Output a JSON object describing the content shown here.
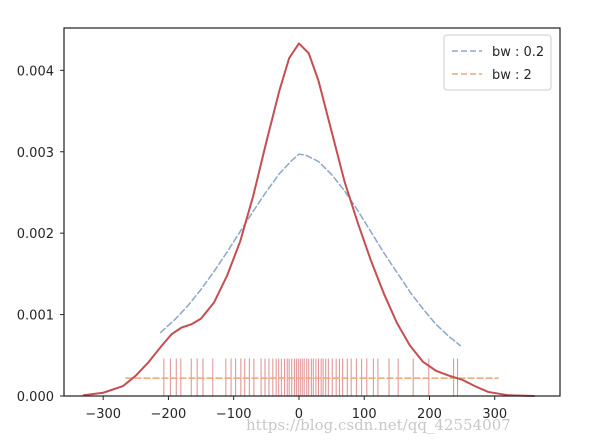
{
  "chart_data": {
    "type": "line",
    "title": "",
    "xlabel": "",
    "ylabel": "",
    "xlim": [
      -360,
      400
    ],
    "ylim": [
      0,
      0.00452
    ],
    "x_ticks": [
      -300,
      -200,
      -100,
      0,
      100,
      200,
      300
    ],
    "x_tick_labels": [
      "−300",
      "−200",
      "−100",
      "0",
      "100",
      "200",
      "300"
    ],
    "y_ticks": [
      0,
      0.001,
      0.002,
      0.003,
      0.004
    ],
    "y_tick_labels": [
      "0.000",
      "0.001",
      "0.002",
      "0.003",
      "0.004"
    ],
    "grid": false,
    "legend": {
      "placement": "top-right"
    },
    "series": [
      {
        "name": "",
        "style": "solid",
        "color": "#c44e52",
        "x": [
          -330,
          -300,
          -270,
          -250,
          -230,
          -210,
          -195,
          -180,
          -165,
          -150,
          -130,
          -110,
          -90,
          -70,
          -50,
          -30,
          -15,
          0,
          15,
          30,
          50,
          70,
          90,
          110,
          130,
          150,
          170,
          190,
          210,
          230,
          250,
          270,
          290,
          320,
          360
        ],
        "y": [
          1e-05,
          4e-05,
          0.00012,
          0.00025,
          0.00042,
          0.00062,
          0.00076,
          0.00084,
          0.00088,
          0.00095,
          0.00115,
          0.00148,
          0.0019,
          0.00246,
          0.00312,
          0.00375,
          0.00415,
          0.00433,
          0.00421,
          0.00387,
          0.00325,
          0.00263,
          0.00213,
          0.00167,
          0.00126,
          0.0009,
          0.00062,
          0.00042,
          0.00031,
          0.00025,
          0.0002,
          0.00012,
          5e-05,
          1e-05,
          0.0
        ]
      },
      {
        "name": "bw : 0.2",
        "style": "dashed",
        "color": "#8da6cc",
        "x": [
          -212,
          -190,
          -170,
          -150,
          -130,
          -110,
          -90,
          -70,
          -50,
          -30,
          -10,
          0,
          10,
          30,
          50,
          70,
          90,
          110,
          130,
          150,
          170,
          190,
          210,
          230,
          247
        ],
        "y": [
          0.00078,
          0.00094,
          0.00111,
          0.00131,
          0.00153,
          0.00177,
          0.00202,
          0.00227,
          0.00251,
          0.00273,
          0.0029,
          0.00297,
          0.00296,
          0.00288,
          0.00272,
          0.00252,
          0.00228,
          0.00202,
          0.00176,
          0.00152,
          0.00128,
          0.00107,
          0.00088,
          0.00073,
          0.00062
        ]
      },
      {
        "name": "bw : 2",
        "style": "dashed",
        "color": "#e8a87c",
        "x": [
          -265,
          305
        ],
        "y": [
          0.00022,
          0.00022
        ]
      }
    ],
    "rug": {
      "color": "#d97a7e",
      "height": 0.00046,
      "x": [
        -207,
        -197,
        -188,
        -181,
        -165,
        -156,
        -147,
        -132,
        -112,
        -104,
        -97,
        -89,
        -83,
        -76,
        -69,
        -58,
        -52,
        -46,
        -40,
        -35,
        -31,
        -27,
        -22,
        -18,
        -15,
        -11,
        -7,
        -4,
        -1,
        2,
        5,
        8,
        12,
        15,
        19,
        22,
        26,
        30,
        34,
        37,
        41,
        45,
        51,
        57,
        62,
        67,
        74,
        80,
        88,
        96,
        104,
        114,
        121,
        138,
        152,
        175,
        199,
        237,
        243
      ]
    }
  },
  "watermark": "https://blog.csdn.net/qq_42554007"
}
